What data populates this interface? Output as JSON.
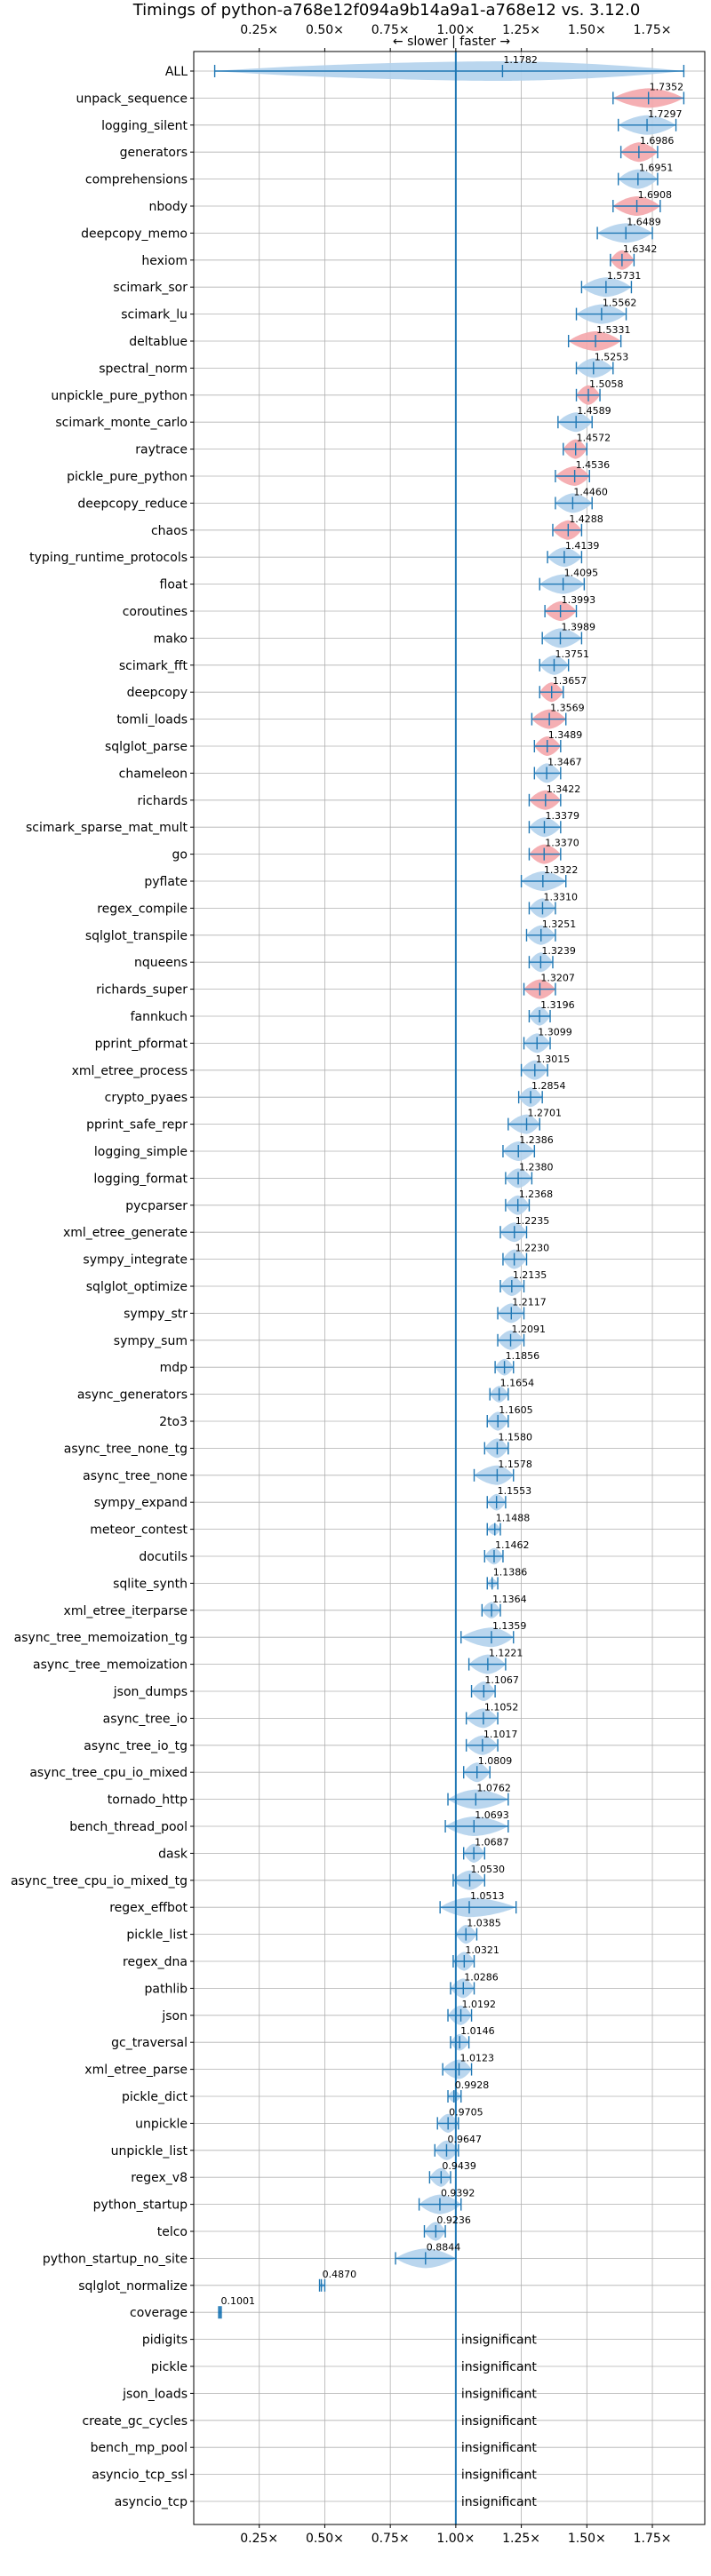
{
  "chart_data": {
    "type": "violin",
    "title": "Timings of python-a768e12f094a9b14a9a1-a768e12 vs. 3.12.0",
    "direction_label": "← slower | faster →",
    "xlim": [
      0,
      1.95
    ],
    "x_ticks": [
      0.25,
      0.5,
      0.75,
      1.0,
      1.25,
      1.5,
      1.75
    ],
    "x_tick_labels": [
      "0.25×",
      "0.50×",
      "0.75×",
      "1.00×",
      "1.25×",
      "1.50×",
      "1.75×"
    ],
    "reference_line": 1.0,
    "grid": true,
    "insignificant_label": "insignificant",
    "colors": {
      "normal": "#1f77b4",
      "normal_fill": "#b3d1ec",
      "highlight_fill": "#f4a6ab",
      "reference": "#1f77b4"
    },
    "benchmarks": [
      {
        "name": "ALL",
        "value": 1.1782,
        "label": "1.1782",
        "lo": 0.08,
        "hi": 1.87,
        "hl": false
      },
      {
        "name": "unpack_sequence",
        "value": 1.7352,
        "label": "1.7352",
        "lo": 1.6,
        "hi": 1.87,
        "hl": true
      },
      {
        "name": "logging_silent",
        "value": 1.7297,
        "label": "1.7297",
        "lo": 1.62,
        "hi": 1.84,
        "hl": false
      },
      {
        "name": "generators",
        "value": 1.6986,
        "label": "1.6986",
        "lo": 1.63,
        "hi": 1.77,
        "hl": true
      },
      {
        "name": "comprehensions",
        "value": 1.6951,
        "label": "1.6951",
        "lo": 1.62,
        "hi": 1.77,
        "hl": false
      },
      {
        "name": "nbody",
        "value": 1.6908,
        "label": "1.6908",
        "lo": 1.6,
        "hi": 1.78,
        "hl": true
      },
      {
        "name": "deepcopy_memo",
        "value": 1.6489,
        "label": "1.6489",
        "lo": 1.54,
        "hi": 1.75,
        "hl": false
      },
      {
        "name": "hexiom",
        "value": 1.6342,
        "label": "1.6342",
        "lo": 1.59,
        "hi": 1.68,
        "hl": true
      },
      {
        "name": "scimark_sor",
        "value": 1.5731,
        "label": "1.5731",
        "lo": 1.48,
        "hi": 1.67,
        "hl": false
      },
      {
        "name": "scimark_lu",
        "value": 1.5562,
        "label": "1.5562",
        "lo": 1.46,
        "hi": 1.65,
        "hl": false
      },
      {
        "name": "deltablue",
        "value": 1.5331,
        "label": "1.5331",
        "lo": 1.43,
        "hi": 1.63,
        "hl": true
      },
      {
        "name": "spectral_norm",
        "value": 1.5253,
        "label": "1.5253",
        "lo": 1.46,
        "hi": 1.6,
        "hl": false
      },
      {
        "name": "unpickle_pure_python",
        "value": 1.5058,
        "label": "1.5058",
        "lo": 1.46,
        "hi": 1.55,
        "hl": true
      },
      {
        "name": "scimark_monte_carlo",
        "value": 1.4589,
        "label": "1.4589",
        "lo": 1.39,
        "hi": 1.52,
        "hl": false
      },
      {
        "name": "raytrace",
        "value": 1.4572,
        "label": "1.4572",
        "lo": 1.41,
        "hi": 1.5,
        "hl": true
      },
      {
        "name": "pickle_pure_python",
        "value": 1.4536,
        "label": "1.4536",
        "lo": 1.38,
        "hi": 1.51,
        "hl": true
      },
      {
        "name": "deepcopy_reduce",
        "value": 1.446,
        "label": "1.4460",
        "lo": 1.38,
        "hi": 1.52,
        "hl": false
      },
      {
        "name": "chaos",
        "value": 1.4288,
        "label": "1.4288",
        "lo": 1.37,
        "hi": 1.48,
        "hl": true
      },
      {
        "name": "typing_runtime_protocols",
        "value": 1.4139,
        "label": "1.4139",
        "lo": 1.35,
        "hi": 1.48,
        "hl": false
      },
      {
        "name": "float",
        "value": 1.4095,
        "label": "1.4095",
        "lo": 1.32,
        "hi": 1.49,
        "hl": false
      },
      {
        "name": "coroutines",
        "value": 1.3993,
        "label": "1.3993",
        "lo": 1.34,
        "hi": 1.46,
        "hl": true
      },
      {
        "name": "mako",
        "value": 1.3989,
        "label": "1.3989",
        "lo": 1.33,
        "hi": 1.48,
        "hl": false
      },
      {
        "name": "scimark_fft",
        "value": 1.3751,
        "label": "1.3751",
        "lo": 1.32,
        "hi": 1.43,
        "hl": false
      },
      {
        "name": "deepcopy",
        "value": 1.3657,
        "label": "1.3657",
        "lo": 1.32,
        "hi": 1.41,
        "hl": true
      },
      {
        "name": "tomli_loads",
        "value": 1.3569,
        "label": "1.3569",
        "lo": 1.29,
        "hi": 1.42,
        "hl": true
      },
      {
        "name": "sqlglot_parse",
        "value": 1.3489,
        "label": "1.3489",
        "lo": 1.3,
        "hi": 1.4,
        "hl": true
      },
      {
        "name": "chameleon",
        "value": 1.3467,
        "label": "1.3467",
        "lo": 1.3,
        "hi": 1.4,
        "hl": false
      },
      {
        "name": "richards",
        "value": 1.3422,
        "label": "1.3422",
        "lo": 1.28,
        "hi": 1.4,
        "hl": true
      },
      {
        "name": "scimark_sparse_mat_mult",
        "value": 1.3379,
        "label": "1.3379",
        "lo": 1.28,
        "hi": 1.4,
        "hl": false
      },
      {
        "name": "go",
        "value": 1.337,
        "label": "1.3370",
        "lo": 1.28,
        "hi": 1.4,
        "hl": true
      },
      {
        "name": "pyflate",
        "value": 1.3322,
        "label": "1.3322",
        "lo": 1.25,
        "hi": 1.42,
        "hl": false
      },
      {
        "name": "regex_compile",
        "value": 1.331,
        "label": "1.3310",
        "lo": 1.28,
        "hi": 1.38,
        "hl": false
      },
      {
        "name": "sqlglot_transpile",
        "value": 1.3251,
        "label": "1.3251",
        "lo": 1.27,
        "hi": 1.38,
        "hl": false
      },
      {
        "name": "nqueens",
        "value": 1.3239,
        "label": "1.3239",
        "lo": 1.28,
        "hi": 1.37,
        "hl": false
      },
      {
        "name": "richards_super",
        "value": 1.3207,
        "label": "1.3207",
        "lo": 1.26,
        "hi": 1.38,
        "hl": true
      },
      {
        "name": "fannkuch",
        "value": 1.3196,
        "label": "1.3196",
        "lo": 1.28,
        "hi": 1.36,
        "hl": false
      },
      {
        "name": "pprint_pformat",
        "value": 1.3099,
        "label": "1.3099",
        "lo": 1.26,
        "hi": 1.36,
        "hl": false
      },
      {
        "name": "xml_etree_process",
        "value": 1.3015,
        "label": "1.3015",
        "lo": 1.25,
        "hi": 1.35,
        "hl": false
      },
      {
        "name": "crypto_pyaes",
        "value": 1.2854,
        "label": "1.2854",
        "lo": 1.24,
        "hi": 1.33,
        "hl": false
      },
      {
        "name": "pprint_safe_repr",
        "value": 1.2701,
        "label": "1.2701",
        "lo": 1.2,
        "hi": 1.32,
        "hl": false
      },
      {
        "name": "logging_simple",
        "value": 1.2386,
        "label": "1.2386",
        "lo": 1.18,
        "hi": 1.3,
        "hl": false
      },
      {
        "name": "logging_format",
        "value": 1.238,
        "label": "1.2380",
        "lo": 1.19,
        "hi": 1.29,
        "hl": false
      },
      {
        "name": "pycparser",
        "value": 1.2368,
        "label": "1.2368",
        "lo": 1.19,
        "hi": 1.28,
        "hl": false
      },
      {
        "name": "xml_etree_generate",
        "value": 1.2235,
        "label": "1.2235",
        "lo": 1.17,
        "hi": 1.27,
        "hl": false
      },
      {
        "name": "sympy_integrate",
        "value": 1.223,
        "label": "1.2230",
        "lo": 1.18,
        "hi": 1.27,
        "hl": false
      },
      {
        "name": "sqlglot_optimize",
        "value": 1.2135,
        "label": "1.2135",
        "lo": 1.17,
        "hi": 1.26,
        "hl": false
      },
      {
        "name": "sympy_str",
        "value": 1.2117,
        "label": "1.2117",
        "lo": 1.16,
        "hi": 1.26,
        "hl": false
      },
      {
        "name": "sympy_sum",
        "value": 1.2091,
        "label": "1.2091",
        "lo": 1.16,
        "hi": 1.26,
        "hl": false
      },
      {
        "name": "mdp",
        "value": 1.1856,
        "label": "1.1856",
        "lo": 1.15,
        "hi": 1.22,
        "hl": false
      },
      {
        "name": "async_generators",
        "value": 1.1654,
        "label": "1.1654",
        "lo": 1.13,
        "hi": 1.2,
        "hl": false
      },
      {
        "name": "2to3",
        "value": 1.1605,
        "label": "1.1605",
        "lo": 1.12,
        "hi": 1.2,
        "hl": false
      },
      {
        "name": "async_tree_none_tg",
        "value": 1.158,
        "label": "1.1580",
        "lo": 1.11,
        "hi": 1.2,
        "hl": false
      },
      {
        "name": "async_tree_none",
        "value": 1.1578,
        "label": "1.1578",
        "lo": 1.07,
        "hi": 1.22,
        "hl": false
      },
      {
        "name": "sympy_expand",
        "value": 1.1553,
        "label": "1.1553",
        "lo": 1.12,
        "hi": 1.19,
        "hl": false
      },
      {
        "name": "meteor_contest",
        "value": 1.1488,
        "label": "1.1488",
        "lo": 1.12,
        "hi": 1.17,
        "hl": false
      },
      {
        "name": "docutils",
        "value": 1.1462,
        "label": "1.1462",
        "lo": 1.11,
        "hi": 1.18,
        "hl": false
      },
      {
        "name": "sqlite_synth",
        "value": 1.1386,
        "label": "1.1386",
        "lo": 1.12,
        "hi": 1.16,
        "hl": false
      },
      {
        "name": "xml_etree_iterparse",
        "value": 1.1364,
        "label": "1.1364",
        "lo": 1.1,
        "hi": 1.17,
        "hl": false
      },
      {
        "name": "async_tree_memoization_tg",
        "value": 1.1359,
        "label": "1.1359",
        "lo": 1.02,
        "hi": 1.22,
        "hl": false
      },
      {
        "name": "async_tree_memoization",
        "value": 1.1221,
        "label": "1.1221",
        "lo": 1.05,
        "hi": 1.19,
        "hl": false
      },
      {
        "name": "json_dumps",
        "value": 1.1067,
        "label": "1.1067",
        "lo": 1.06,
        "hi": 1.15,
        "hl": false
      },
      {
        "name": "async_tree_io",
        "value": 1.1052,
        "label": "1.1052",
        "lo": 1.04,
        "hi": 1.16,
        "hl": false
      },
      {
        "name": "async_tree_io_tg",
        "value": 1.1017,
        "label": "1.1017",
        "lo": 1.04,
        "hi": 1.16,
        "hl": false
      },
      {
        "name": "async_tree_cpu_io_mixed",
        "value": 1.0809,
        "label": "1.0809",
        "lo": 1.03,
        "hi": 1.13,
        "hl": false
      },
      {
        "name": "tornado_http",
        "value": 1.0762,
        "label": "1.0762",
        "lo": 0.97,
        "hi": 1.2,
        "hl": false
      },
      {
        "name": "bench_thread_pool",
        "value": 1.0693,
        "label": "1.0693",
        "lo": 0.96,
        "hi": 1.2,
        "hl": false
      },
      {
        "name": "dask",
        "value": 1.0687,
        "label": "1.0687",
        "lo": 1.03,
        "hi": 1.11,
        "hl": false
      },
      {
        "name": "async_tree_cpu_io_mixed_tg",
        "value": 1.053,
        "label": "1.0530",
        "lo": 0.99,
        "hi": 1.11,
        "hl": false
      },
      {
        "name": "regex_effbot",
        "value": 1.0513,
        "label": "1.0513",
        "lo": 0.94,
        "hi": 1.23,
        "hl": false
      },
      {
        "name": "pickle_list",
        "value": 1.0385,
        "label": "1.0385",
        "lo": 1.0,
        "hi": 1.08,
        "hl": false
      },
      {
        "name": "regex_dna",
        "value": 1.0321,
        "label": "1.0321",
        "lo": 0.99,
        "hi": 1.07,
        "hl": false
      },
      {
        "name": "pathlib",
        "value": 1.0286,
        "label": "1.0286",
        "lo": 0.98,
        "hi": 1.07,
        "hl": false
      },
      {
        "name": "json",
        "value": 1.0192,
        "label": "1.0192",
        "lo": 0.97,
        "hi": 1.06,
        "hl": false
      },
      {
        "name": "gc_traversal",
        "value": 1.0146,
        "label": "1.0146",
        "lo": 0.98,
        "hi": 1.05,
        "hl": false
      },
      {
        "name": "xml_etree_parse",
        "value": 1.0123,
        "label": "1.0123",
        "lo": 0.95,
        "hi": 1.06,
        "hl": false
      },
      {
        "name": "pickle_dict",
        "value": 0.9928,
        "label": "0.9928",
        "lo": 0.97,
        "hi": 1.02,
        "hl": false
      },
      {
        "name": "unpickle",
        "value": 0.9705,
        "label": "0.9705",
        "lo": 0.93,
        "hi": 1.01,
        "hl": false
      },
      {
        "name": "unpickle_list",
        "value": 0.9647,
        "label": "0.9647",
        "lo": 0.92,
        "hi": 1.01,
        "hl": false
      },
      {
        "name": "regex_v8",
        "value": 0.9439,
        "label": "0.9439",
        "lo": 0.9,
        "hi": 0.98,
        "hl": false
      },
      {
        "name": "python_startup",
        "value": 0.9392,
        "label": "0.9392",
        "lo": 0.86,
        "hi": 1.02,
        "hl": false
      },
      {
        "name": "telco",
        "value": 0.9236,
        "label": "0.9236",
        "lo": 0.88,
        "hi": 0.96,
        "hl": false
      },
      {
        "name": "python_startup_no_site",
        "value": 0.8844,
        "label": "0.8844",
        "lo": 0.77,
        "hi": 1.0,
        "hl": false
      },
      {
        "name": "sqlglot_normalize",
        "value": 0.487,
        "label": "0.4870",
        "lo": 0.48,
        "hi": 0.5,
        "hl": false
      },
      {
        "name": "coverage",
        "value": 0.1001,
        "label": "0.1001",
        "lo": 0.095,
        "hi": 0.105,
        "hl": false
      },
      {
        "name": "pidigits",
        "value": null,
        "label": "insignificant",
        "hl": false
      },
      {
        "name": "pickle",
        "value": null,
        "label": "insignificant",
        "hl": false
      },
      {
        "name": "json_loads",
        "value": null,
        "label": "insignificant",
        "hl": false
      },
      {
        "name": "create_gc_cycles",
        "value": null,
        "label": "insignificant",
        "hl": false
      },
      {
        "name": "bench_mp_pool",
        "value": null,
        "label": "insignificant",
        "hl": false
      },
      {
        "name": "asyncio_tcp_ssl",
        "value": null,
        "label": "insignificant",
        "hl": false
      },
      {
        "name": "asyncio_tcp",
        "value": null,
        "label": "insignificant",
        "hl": false
      }
    ]
  }
}
